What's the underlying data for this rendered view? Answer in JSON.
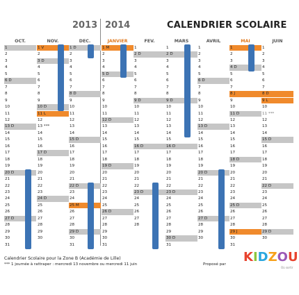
{
  "header": {
    "year_left": "2013",
    "year_right": "2014",
    "title": "CALENDRIER SCOLAIRE"
  },
  "months": [
    {
      "name": "OCT.",
      "days": [
        {
          "n": "1",
          "c": "grey"
        },
        {
          "n": "2"
        },
        {
          "n": "3"
        },
        {
          "n": "4"
        },
        {
          "n": "5"
        },
        {
          "n": "6 D",
          "c": "grey"
        },
        {
          "n": "7"
        },
        {
          "n": "8"
        },
        {
          "n": "9"
        },
        {
          "n": "10"
        },
        {
          "n": "11"
        },
        {
          "n": "12"
        },
        {
          "n": "13 D",
          "c": "grey"
        },
        {
          "n": "14"
        },
        {
          "n": "15"
        },
        {
          "n": "16"
        },
        {
          "n": "17"
        },
        {
          "n": "18"
        },
        {
          "n": "19"
        },
        {
          "n": "20 D",
          "c": "grey"
        },
        {
          "n": "21"
        },
        {
          "n": "22"
        },
        {
          "n": "23"
        },
        {
          "n": "24"
        },
        {
          "n": "25"
        },
        {
          "n": "26"
        },
        {
          "n": "27 D",
          "c": "grey"
        },
        {
          "n": "28"
        },
        {
          "n": "29"
        },
        {
          "n": "30"
        },
        {
          "n": "31"
        }
      ]
    },
    {
      "name": "NOV.",
      "days": [
        {
          "n": "1 V",
          "c": "orange"
        },
        {
          "n": "2"
        },
        {
          "n": "3 D",
          "c": "grey"
        },
        {
          "n": "4"
        },
        {
          "n": "5"
        },
        {
          "n": "6"
        },
        {
          "n": "7"
        },
        {
          "n": "8"
        },
        {
          "n": "9"
        },
        {
          "n": "10 D",
          "c": "grey"
        },
        {
          "n": "11 L",
          "c": "orange"
        },
        {
          "n": "12"
        },
        {
          "n": "13 ***"
        },
        {
          "n": "14"
        },
        {
          "n": "15"
        },
        {
          "n": "16"
        },
        {
          "n": "17 D",
          "c": "grey"
        },
        {
          "n": "18"
        },
        {
          "n": "19"
        },
        {
          "n": "20"
        },
        {
          "n": "21"
        },
        {
          "n": "22"
        },
        {
          "n": "23"
        },
        {
          "n": "24 D",
          "c": "grey"
        },
        {
          "n": "25"
        },
        {
          "n": "26"
        },
        {
          "n": "27"
        },
        {
          "n": "28"
        },
        {
          "n": "29"
        },
        {
          "n": "30"
        }
      ]
    },
    {
      "name": "DEC.",
      "days": [
        {
          "n": "1 D",
          "c": "grey"
        },
        {
          "n": "2"
        },
        {
          "n": "3"
        },
        {
          "n": "4"
        },
        {
          "n": "5"
        },
        {
          "n": "6"
        },
        {
          "n": "7"
        },
        {
          "n": "8 D",
          "c": "grey"
        },
        {
          "n": "9"
        },
        {
          "n": "10"
        },
        {
          "n": "11"
        },
        {
          "n": "12"
        },
        {
          "n": "13"
        },
        {
          "n": "14"
        },
        {
          "n": "15 D",
          "c": "grey"
        },
        {
          "n": "16"
        },
        {
          "n": "17"
        },
        {
          "n": "18"
        },
        {
          "n": "19"
        },
        {
          "n": "20"
        },
        {
          "n": "21"
        },
        {
          "n": "22 D",
          "c": "grey"
        },
        {
          "n": "23"
        },
        {
          "n": "24"
        },
        {
          "n": "25 M",
          "c": "orange"
        },
        {
          "n": "26"
        },
        {
          "n": "27"
        },
        {
          "n": "28"
        },
        {
          "n": "29 D",
          "c": "grey"
        },
        {
          "n": "30"
        },
        {
          "n": "31"
        }
      ]
    },
    {
      "name": "JANVIER",
      "accent": true,
      "days": [
        {
          "n": "1 M",
          "c": "orange"
        },
        {
          "n": "2"
        },
        {
          "n": "3"
        },
        {
          "n": "4"
        },
        {
          "n": "5 D",
          "c": "grey"
        },
        {
          "n": "6"
        },
        {
          "n": "7"
        },
        {
          "n": "8"
        },
        {
          "n": "9"
        },
        {
          "n": "10"
        },
        {
          "n": "11"
        },
        {
          "n": "12 D",
          "c": "grey"
        },
        {
          "n": "13"
        },
        {
          "n": "14"
        },
        {
          "n": "15"
        },
        {
          "n": "16"
        },
        {
          "n": "17"
        },
        {
          "n": "18"
        },
        {
          "n": "19 D",
          "c": "grey"
        },
        {
          "n": "20"
        },
        {
          "n": "21"
        },
        {
          "n": "22"
        },
        {
          "n": "23"
        },
        {
          "n": "24"
        },
        {
          "n": "25"
        },
        {
          "n": "26 D",
          "c": "grey"
        },
        {
          "n": "27"
        },
        {
          "n": "28"
        },
        {
          "n": "29"
        },
        {
          "n": "30"
        },
        {
          "n": "31"
        }
      ]
    },
    {
      "name": "FEV.",
      "days": [
        {
          "n": "1"
        },
        {
          "n": "2 D",
          "c": "grey"
        },
        {
          "n": "3"
        },
        {
          "n": "4"
        },
        {
          "n": "5"
        },
        {
          "n": "6"
        },
        {
          "n": "7"
        },
        {
          "n": "8"
        },
        {
          "n": "9 D",
          "c": "grey"
        },
        {
          "n": "10"
        },
        {
          "n": "11"
        },
        {
          "n": "12"
        },
        {
          "n": "13"
        },
        {
          "n": "14"
        },
        {
          "n": "15"
        },
        {
          "n": "16 D",
          "c": "grey"
        },
        {
          "n": "17"
        },
        {
          "n": "18"
        },
        {
          "n": "19"
        },
        {
          "n": "20"
        },
        {
          "n": "21"
        },
        {
          "n": "22"
        },
        {
          "n": "23 D",
          "c": "grey"
        },
        {
          "n": "24"
        },
        {
          "n": "25"
        },
        {
          "n": "26"
        },
        {
          "n": "27"
        },
        {
          "n": "28"
        }
      ]
    },
    {
      "name": "MARS",
      "days": [
        {
          "n": "1"
        },
        {
          "n": "2 D",
          "c": "grey"
        },
        {
          "n": "3"
        },
        {
          "n": "4"
        },
        {
          "n": "5"
        },
        {
          "n": "6"
        },
        {
          "n": "7"
        },
        {
          "n": "8"
        },
        {
          "n": "9 D",
          "c": "grey"
        },
        {
          "n": "10"
        },
        {
          "n": "11"
        },
        {
          "n": "12"
        },
        {
          "n": "13"
        },
        {
          "n": "14"
        },
        {
          "n": "15"
        },
        {
          "n": "16 D",
          "c": "grey"
        },
        {
          "n": "17"
        },
        {
          "n": "18"
        },
        {
          "n": "19"
        },
        {
          "n": "20"
        },
        {
          "n": "21"
        },
        {
          "n": "22"
        },
        {
          "n": "23 D",
          "c": "grey"
        },
        {
          "n": "24"
        },
        {
          "n": "25"
        },
        {
          "n": "26"
        },
        {
          "n": "27"
        },
        {
          "n": "28"
        },
        {
          "n": "29"
        },
        {
          "n": "30 D",
          "c": "grey"
        },
        {
          "n": "31"
        }
      ]
    },
    {
      "name": "AVRIL",
      "days": [
        {
          "n": "1"
        },
        {
          "n": "2"
        },
        {
          "n": "3"
        },
        {
          "n": "4"
        },
        {
          "n": "5"
        },
        {
          "n": "6 D",
          "c": "grey"
        },
        {
          "n": "7"
        },
        {
          "n": "8"
        },
        {
          "n": "9"
        },
        {
          "n": "10"
        },
        {
          "n": "11"
        },
        {
          "n": "12"
        },
        {
          "n": "13 D",
          "c": "grey"
        },
        {
          "n": "14"
        },
        {
          "n": "15"
        },
        {
          "n": "16"
        },
        {
          "n": "17"
        },
        {
          "n": "18"
        },
        {
          "n": "19"
        },
        {
          "n": "20 D",
          "c": "grey"
        },
        {
          "n": "21"
        },
        {
          "n": "22"
        },
        {
          "n": "23"
        },
        {
          "n": "24"
        },
        {
          "n": "25"
        },
        {
          "n": "26"
        },
        {
          "n": "27 D",
          "c": "grey"
        },
        {
          "n": "28"
        },
        {
          "n": "29"
        },
        {
          "n": "30"
        }
      ]
    },
    {
      "name": "MAI",
      "accent": true,
      "days": [
        {
          "n": "1",
          "c": "orange"
        },
        {
          "n": "2"
        },
        {
          "n": "3"
        },
        {
          "n": "4 D",
          "c": "grey"
        },
        {
          "n": "5"
        },
        {
          "n": "6"
        },
        {
          "n": "7"
        },
        {
          "n": "8 J",
          "c": "orange"
        },
        {
          "n": "9"
        },
        {
          "n": "10"
        },
        {
          "n": "11 D",
          "c": "grey"
        },
        {
          "n": "12"
        },
        {
          "n": "13"
        },
        {
          "n": "14"
        },
        {
          "n": "15"
        },
        {
          "n": "16"
        },
        {
          "n": "17"
        },
        {
          "n": "18 D",
          "c": "grey"
        },
        {
          "n": "19"
        },
        {
          "n": "20"
        },
        {
          "n": "21"
        },
        {
          "n": "22"
        },
        {
          "n": "23"
        },
        {
          "n": "24"
        },
        {
          "n": "25 D",
          "c": "grey"
        },
        {
          "n": "26"
        },
        {
          "n": "27"
        },
        {
          "n": "28"
        },
        {
          "n": "29 J",
          "c": "orange"
        },
        {
          "n": "30"
        },
        {
          "n": "31"
        }
      ]
    },
    {
      "name": "JUIN",
      "days": [
        {
          "n": "1"
        },
        {
          "n": "2"
        },
        {
          "n": "3"
        },
        {
          "n": "4"
        },
        {
          "n": "5"
        },
        {
          "n": "6"
        },
        {
          "n": "7"
        },
        {
          "n": "8 D",
          "c": "orange"
        },
        {
          "n": "9 L",
          "c": "orange"
        },
        {
          "n": "10"
        },
        {
          "n": "11 ***",
          "c": "faint"
        },
        {
          "n": "12"
        },
        {
          "n": "13"
        },
        {
          "n": "14"
        },
        {
          "n": "15 D",
          "c": "grey"
        },
        {
          "n": "16"
        },
        {
          "n": "17"
        },
        {
          "n": "18"
        },
        {
          "n": "19"
        },
        {
          "n": "20"
        },
        {
          "n": "21"
        },
        {
          "n": "22 D",
          "c": "grey"
        },
        {
          "n": "23"
        },
        {
          "n": "24"
        },
        {
          "n": "25"
        },
        {
          "n": "26"
        },
        {
          "n": "27"
        },
        {
          "n": "28"
        },
        {
          "n": "29 D",
          "c": "grey"
        },
        {
          "n": "30"
        }
      ]
    }
  ],
  "footer": {
    "line1": "Calendrier Scolaire pour la Zone B (Académie de Lille)",
    "line2": "*** 1 journée à rattraper : mercredi 13 novembre ou mercredi 11 juin",
    "propose": "Proposé par",
    "logo": "KIDZOU",
    "logo_sub": "Où sortir"
  },
  "colors": {
    "vacation_bar": "#3c73b4",
    "holiday": "#f08a2c",
    "sunday": "#c6c6c6",
    "logo": [
      "#e8432e",
      "#8cc63f",
      "#2aa7df",
      "#f7a11a",
      "#9b59b6",
      "#e8432e"
    ]
  }
}
